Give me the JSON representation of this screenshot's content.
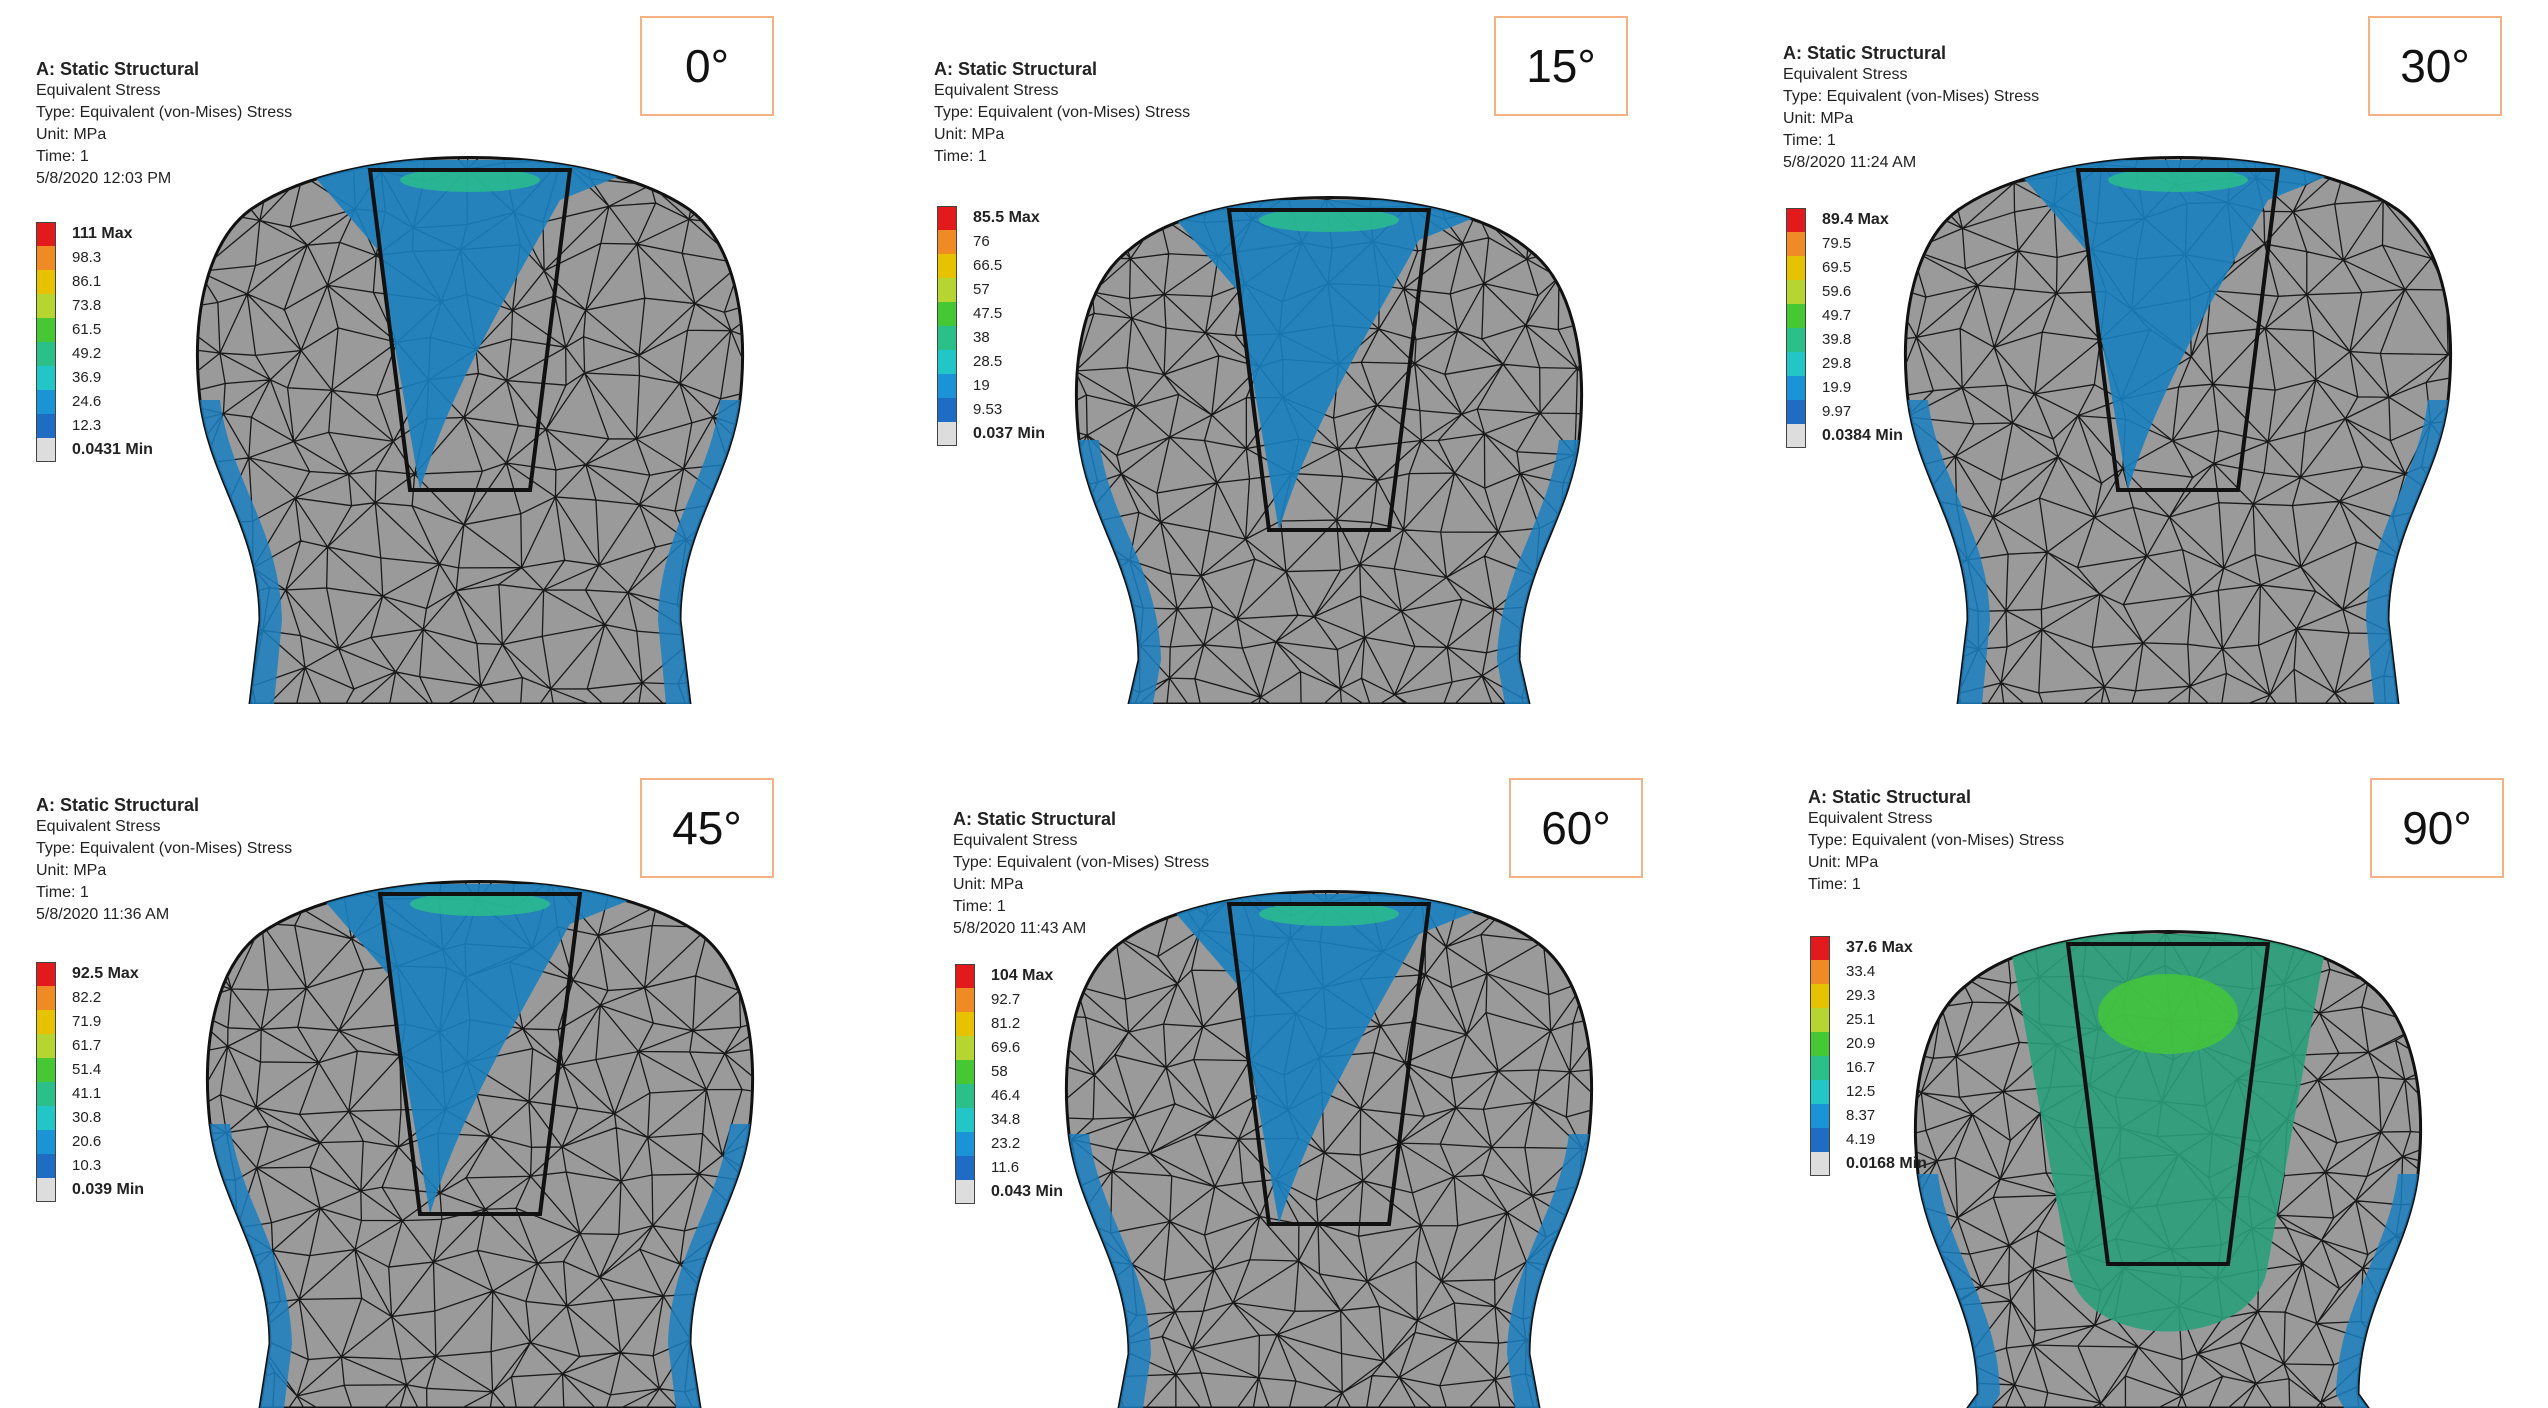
{
  "legend_colors": [
    "#e31a1c",
    "#f08a24",
    "#e6c200",
    "#b7d531",
    "#46c834",
    "#2bc08a",
    "#22c6c6",
    "#1a94d6",
    "#1f6cc4",
    "#dddddd"
  ],
  "panels": [
    {
      "angle": "0°",
      "title": "A: Static Structural",
      "result": "Equivalent Stress",
      "type": "Type: Equivalent (von-Mises) Stress",
      "unit": "Unit: MPa",
      "time": "Time: 1",
      "date": "5/8/2020 12:03 PM",
      "legend": [
        "111 Max",
        "98.3",
        "86.1",
        "73.8",
        "61.5",
        "49.2",
        "36.9",
        "24.6",
        "12.3",
        "0.0431 Min"
      ],
      "stress_level": 0.35
    },
    {
      "angle": "15°",
      "title": "A: Static Structural",
      "result": "Equivalent Stress",
      "type": "Type: Equivalent (von-Mises) Stress",
      "unit": "Unit: MPa",
      "time": "Time: 1",
      "date": "",
      "legend": [
        "85.5 Max",
        "76",
        "66.5",
        "57",
        "47.5",
        "38",
        "28.5",
        "19",
        "9.53",
        "0.037 Min"
      ],
      "stress_level": 0.3
    },
    {
      "angle": "30°",
      "title": "A: Static Structural",
      "result": "Equivalent Stress",
      "type": "Type: Equivalent (von-Mises) Stress",
      "unit": "Unit: MPa",
      "time": "Time: 1",
      "date": "5/8/2020 11:24 AM",
      "legend": [
        "89.4 Max",
        "79.5",
        "69.5",
        "59.6",
        "49.7",
        "39.8",
        "29.8",
        "19.9",
        "9.97",
        "0.0384 Min"
      ],
      "stress_level": 0.3
    },
    {
      "angle": "45°",
      "title": "A: Static Structural",
      "result": "Equivalent Stress",
      "type": "Type: Equivalent (von-Mises) Stress",
      "unit": "Unit: MPa",
      "time": "Time: 1",
      "date": "5/8/2020 11:36 AM",
      "legend": [
        "92.5 Max",
        "82.2",
        "71.9",
        "61.7",
        "51.4",
        "41.1",
        "30.8",
        "20.6",
        "10.3",
        "0.039 Min"
      ],
      "stress_level": 0.3
    },
    {
      "angle": "60°",
      "title": "A: Static Structural",
      "result": "Equivalent Stress",
      "type": "Type: Equivalent (von-Mises) Stress",
      "unit": "Unit: MPa",
      "time": "Time: 1",
      "date": "5/8/2020 11:43 AM",
      "legend": [
        "104 Max",
        "92.7",
        "81.2",
        "69.6",
        "58",
        "46.4",
        "34.8",
        "23.2",
        "11.6",
        "0.043 Min"
      ],
      "stress_level": 0.3
    },
    {
      "angle": "90°",
      "title": "A: Static Structural",
      "result": "Equivalent Stress",
      "type": "Type: Equivalent (von-Mises) Stress",
      "unit": "Unit: MPa",
      "time": "Time: 1",
      "date": "",
      "legend": [
        "37.6 Max",
        "33.4",
        "29.3",
        "25.1",
        "20.9",
        "16.7",
        "12.5",
        "8.37",
        "4.19",
        "0.0168 Min"
      ],
      "stress_level": 0.6
    }
  ]
}
